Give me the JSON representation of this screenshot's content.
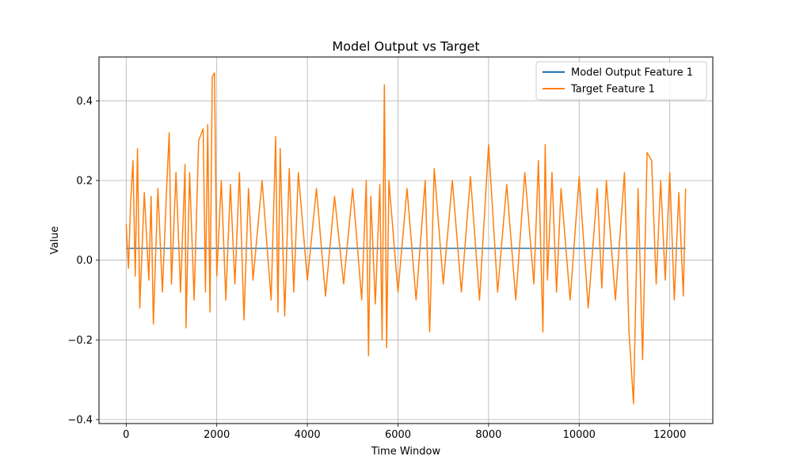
{
  "chart_data": {
    "type": "line",
    "title": "Model Output vs Target",
    "xlabel": "Time Window",
    "ylabel": "Value",
    "xlim": [
      -600,
      12950
    ],
    "ylim": [
      -0.41,
      0.51
    ],
    "xticks": [
      0,
      2000,
      4000,
      6000,
      8000,
      10000,
      12000
    ],
    "yticks": [
      -0.4,
      -0.2,
      0.0,
      0.2,
      0.4
    ],
    "xtick_labels": [
      "0",
      "2000",
      "4000",
      "6000",
      "8000",
      "10000",
      "12000"
    ],
    "ytick_labels": [
      "−0.4",
      "−0.2",
      "0.0",
      "0.2",
      "0.4"
    ],
    "grid": true,
    "legend_position": "top-right",
    "series": [
      {
        "name": "Model Output Feature 1",
        "color": "#1f77b4",
        "x": [
          0,
          12350
        ],
        "y": [
          0.03,
          0.03
        ]
      },
      {
        "name": "Target Feature 1",
        "color": "#ff7f0e",
        "x": [
          0,
          50,
          100,
          150,
          200,
          250,
          300,
          400,
          500,
          550,
          600,
          700,
          800,
          900,
          950,
          1000,
          1100,
          1200,
          1300,
          1320,
          1400,
          1500,
          1600,
          1700,
          1750,
          1800,
          1850,
          1900,
          1950,
          2000,
          2100,
          2200,
          2300,
          2400,
          2500,
          2600,
          2700,
          2800,
          3000,
          3200,
          3300,
          3350,
          3400,
          3500,
          3600,
          3700,
          3800,
          4000,
          4200,
          4400,
          4600,
          4800,
          5000,
          5200,
          5300,
          5350,
          5400,
          5500,
          5600,
          5650,
          5700,
          5750,
          5800,
          6000,
          6200,
          6400,
          6600,
          6700,
          6800,
          7000,
          7200,
          7400,
          7600,
          7800,
          8000,
          8200,
          8400,
          8600,
          8800,
          9000,
          9100,
          9200,
          9250,
          9300,
          9400,
          9500,
          9600,
          9800,
          10000,
          10200,
          10400,
          10500,
          10600,
          10800,
          11000,
          11100,
          11200,
          11300,
          11400,
          11500,
          11600,
          11700,
          11800,
          11900,
          12000,
          12100,
          12200,
          12300,
          12350
        ],
        "y": [
          0.09,
          -0.02,
          0.15,
          0.25,
          -0.04,
          0.28,
          -0.12,
          0.17,
          -0.05,
          0.16,
          -0.16,
          0.18,
          -0.08,
          0.2,
          0.32,
          -0.06,
          0.22,
          -0.08,
          0.24,
          -0.17,
          0.22,
          -0.1,
          0.3,
          0.33,
          -0.08,
          0.34,
          -0.13,
          0.46,
          0.47,
          -0.04,
          0.2,
          -0.1,
          0.19,
          -0.06,
          0.22,
          -0.15,
          0.18,
          -0.05,
          0.2,
          -0.1,
          0.31,
          -0.13,
          0.28,
          -0.14,
          0.23,
          -0.08,
          0.22,
          -0.05,
          0.18,
          -0.09,
          0.16,
          -0.06,
          0.18,
          -0.1,
          0.2,
          -0.24,
          0.16,
          -0.11,
          0.19,
          -0.2,
          0.44,
          -0.22,
          0.2,
          -0.08,
          0.18,
          -0.1,
          0.2,
          -0.18,
          0.23,
          -0.06,
          0.2,
          -0.08,
          0.21,
          -0.1,
          0.29,
          -0.08,
          0.19,
          -0.1,
          0.22,
          -0.06,
          0.25,
          -0.18,
          0.29,
          -0.05,
          0.22,
          -0.08,
          0.18,
          -0.1,
          0.21,
          -0.12,
          0.18,
          -0.07,
          0.2,
          -0.1,
          0.22,
          -0.18,
          -0.36,
          0.18,
          -0.25,
          0.27,
          0.25,
          -0.06,
          0.2,
          -0.05,
          0.22,
          -0.1,
          0.17,
          -0.09,
          0.18
        ]
      }
    ]
  }
}
